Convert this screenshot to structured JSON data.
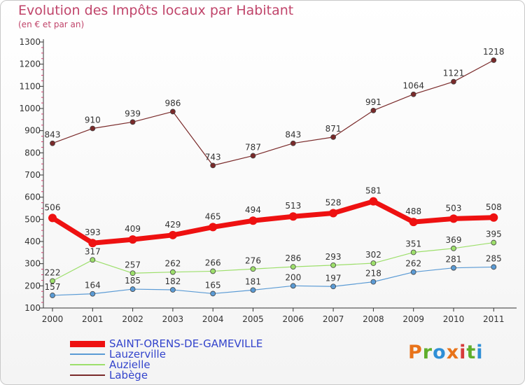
{
  "header": {
    "title": "Evolution des Impôts locaux par Habitant",
    "subtitle": "(en € et par an)"
  },
  "logo": {
    "letters": [
      "P",
      "r",
      "o",
      "x",
      "i",
      "t",
      "i"
    ],
    "colors": [
      "#e8731a",
      "#5fae2c",
      "#2f8fd6",
      "#e8731a",
      "#d63a3a",
      "#5fae2c",
      "#2f8fd6"
    ]
  },
  "chart_data": {
    "type": "line",
    "x": [
      "2000",
      "2001",
      "2002",
      "2003",
      "2004",
      "2005",
      "2006",
      "2007",
      "2008",
      "2009",
      "2010",
      "2011"
    ],
    "ylim": [
      100,
      1300
    ],
    "yticks": [
      100,
      200,
      300,
      400,
      500,
      600,
      700,
      800,
      900,
      1000,
      1100,
      1200,
      1300
    ],
    "grid": false,
    "legend_position": "bottom-left",
    "series": [
      {
        "name": "SAINT-ORENS-DE-GAMEVILLE",
        "values": [
          506,
          393,
          409,
          429,
          465,
          494,
          513,
          528,
          581,
          488,
          503,
          508
        ],
        "color": "#ee1111",
        "legend_text_color": "#3344cc",
        "emphasis": true
      },
      {
        "name": "Lauzerville",
        "values": [
          157,
          164,
          185,
          182,
          165,
          181,
          200,
          197,
          218,
          262,
          281,
          285
        ],
        "color": "#5b9bd5",
        "legend_text_color": "#3344cc",
        "emphasis": false
      },
      {
        "name": "Auzielle",
        "values": [
          222,
          317,
          257,
          262,
          266,
          276,
          286,
          293,
          302,
          351,
          369,
          395
        ],
        "color": "#9ddf6b",
        "legend_text_color": "#3344cc",
        "emphasis": false
      },
      {
        "name": "Labège",
        "values": [
          843,
          910,
          939,
          986,
          743,
          787,
          843,
          871,
          991,
          1064,
          1121,
          1218
        ],
        "color": "#7a2a2a",
        "legend_text_color": "#3344cc",
        "emphasis": false
      }
    ]
  }
}
